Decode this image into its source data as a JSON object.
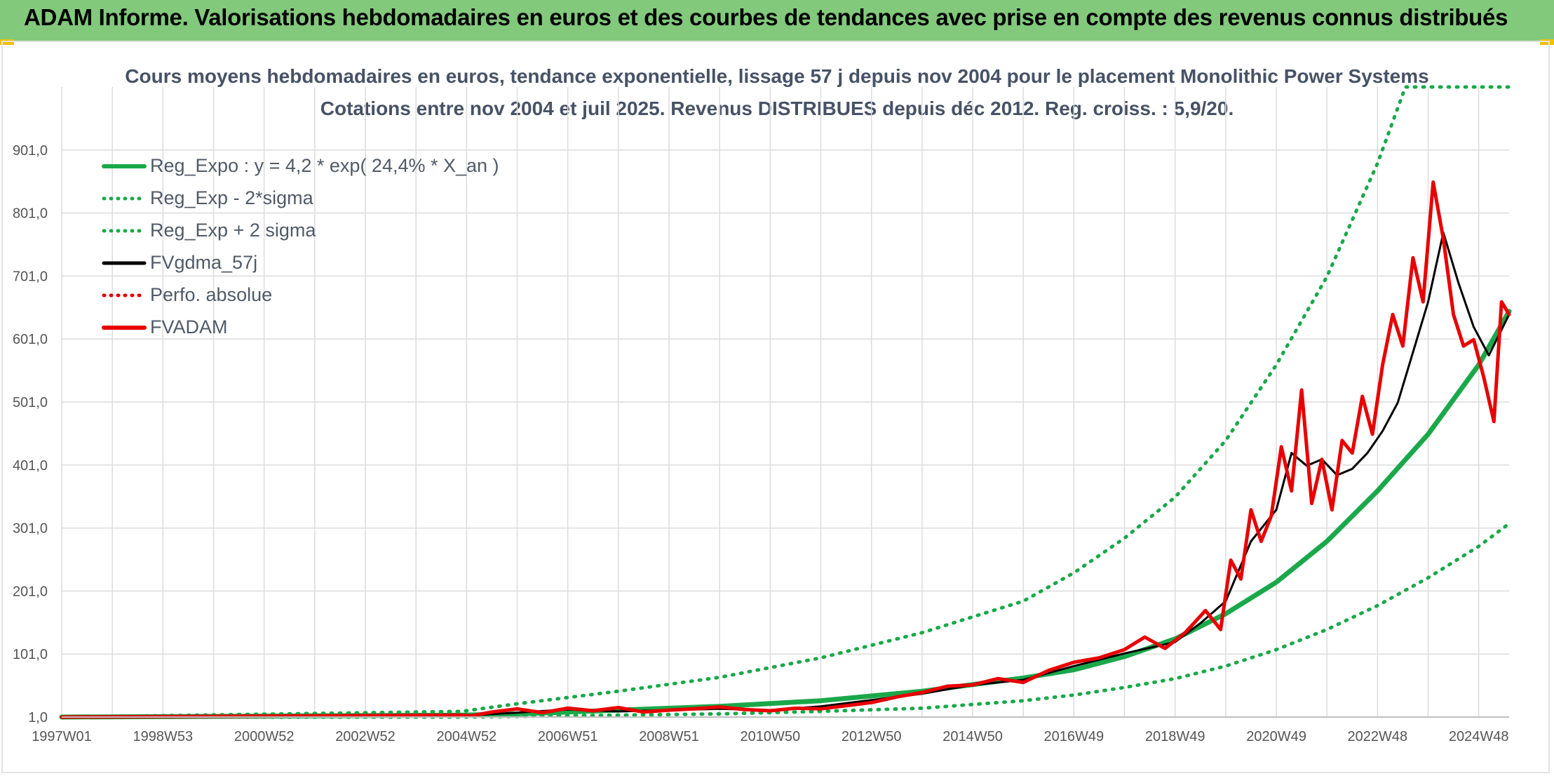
{
  "banner": {
    "title": "ADAM Informe. Valorisations hebdomadaires en euros et des courbes de tendances avec prise en compte des revenus connus distribués"
  },
  "chart_data": {
    "type": "line",
    "title": "Cours moyens hebdomadaires en euros, tendance exponentielle, lissage 57 j depuis nov 2004 pour le placement Monolithic Power Systems",
    "subtitle": "Cotations entre nov 2004 et juil 2025. Revenus DISTRIBUES depuis déc 2012. Reg. croiss. : 5,9/20.",
    "xlabel": "",
    "ylabel": "",
    "x_start_year": 1997,
    "x_end_year": 2025.6,
    "ylim": [
      1,
      1001
    ],
    "yticks": [
      "1,0",
      "101,0",
      "201,0",
      "301,0",
      "401,0",
      "501,0",
      "601,0",
      "701,0",
      "801,0",
      "901,0"
    ],
    "xticks": [
      "1997W01",
      "1998W53",
      "2000W52",
      "2002W52",
      "2004W52",
      "2006W51",
      "2008W51",
      "2010W50",
      "2012W50",
      "2014W50",
      "2016W49",
      "2018W49",
      "2020W49",
      "2022W48",
      "2024W48"
    ],
    "grid": true,
    "legend_position": "top-left",
    "legend": [
      {
        "name": "Reg_Expo : y = 4,2 * exp( 24,4% *  X_an )",
        "color": "#1aa84a",
        "style": "solid"
      },
      {
        "name": "Reg_Exp - 2*sigma",
        "color": "#1aa84a",
        "style": "dotted"
      },
      {
        "name": "Reg_Exp + 2 sigma",
        "color": "#1aa84a",
        "style": "dotted"
      },
      {
        "name": "FVgdma_57j",
        "color": "#000000",
        "style": "solid"
      },
      {
        "name": "Perfo. absolue",
        "color": "#e00000",
        "style": "dotted"
      },
      {
        "name": "FVADAM",
        "color": "#e80000",
        "style": "solid"
      }
    ],
    "series": [
      {
        "name": "Reg_Expo : y = 4,2 * exp( 24,4% *  X_an )",
        "color": "#1aa84a",
        "x": [
          1997,
          2004.9,
          2006,
          2008,
          2010,
          2012,
          2014,
          2016,
          2017,
          2018,
          2019,
          2020,
          2021,
          2022,
          2023,
          2024,
          2025,
          2025.6
        ],
        "y": [
          1,
          4,
          6,
          12,
          18,
          27,
          42,
          63,
          76,
          97,
          125,
          165,
          215,
          280,
          360,
          450,
          560,
          645
        ]
      },
      {
        "name": "Reg_Exp - 2*sigma",
        "color": "#1aa84a",
        "x": [
          1997,
          2004.9,
          2006,
          2008,
          2010,
          2012,
          2014,
          2016,
          2017,
          2018,
          2019,
          2020,
          2021,
          2022,
          2023,
          2024,
          2025,
          2025.6
        ],
        "y": [
          1,
          1,
          2,
          4,
          6,
          10,
          15,
          27,
          36,
          48,
          62,
          82,
          108,
          140,
          178,
          222,
          272,
          308
        ]
      },
      {
        "name": "Reg_Exp + 2 sigma",
        "color": "#1aa84a",
        "x": [
          1997,
          2004.9,
          2006,
          2008,
          2010,
          2012,
          2014,
          2015,
          2016,
          2017,
          2018,
          2019,
          2020,
          2021,
          2022,
          2023,
          2023.55,
          2025.6
        ],
        "y": [
          1,
          10,
          22,
          42,
          64,
          95,
          135,
          160,
          185,
          230,
          285,
          350,
          440,
          560,
          700,
          880,
          1001,
          1001
        ]
      },
      {
        "name": "FVgdma_57j",
        "color": "#000000",
        "x": [
          1997,
          2004.9,
          2006,
          2007,
          2008,
          2009,
          2010,
          2011,
          2012,
          2013,
          2014,
          2015,
          2016,
          2017,
          2018,
          2019,
          2019.5,
          2020,
          2020.5,
          2021,
          2021.3,
          2021.6,
          2021.9,
          2022.2,
          2022.5,
          2022.8,
          2023.1,
          2023.4,
          2023.7,
          2024.0,
          2024.3,
          2024.6,
          2024.9,
          2025.2,
          2025.6
        ],
        "y": [
          1,
          3,
          8,
          13,
          10,
          12,
          14,
          12,
          18,
          28,
          38,
          52,
          60,
          82,
          102,
          120,
          150,
          185,
          280,
          330,
          420,
          400,
          410,
          385,
          395,
          420,
          455,
          500,
          580,
          660,
          770,
          690,
          620,
          575,
          640
        ]
      },
      {
        "name": "FVADAM",
        "color": "#e80000",
        "x": [
          1997,
          2004.85,
          2005.1,
          2005.5,
          2006,
          2006.5,
          2007,
          2007.5,
          2008,
          2008.5,
          2009,
          2009.5,
          2010,
          2010.5,
          2011,
          2011.5,
          2012,
          2012.5,
          2013,
          2013.5,
          2014,
          2014.5,
          2015,
          2015.5,
          2016,
          2016.5,
          2017,
          2017.5,
          2018,
          2018.4,
          2018.8,
          2019.2,
          2019.6,
          2019.9,
          2020.1,
          2020.3,
          2020.5,
          2020.7,
          2020.9,
          2021.1,
          2021.3,
          2021.5,
          2021.7,
          2021.9,
          2022.1,
          2022.3,
          2022.5,
          2022.7,
          2022.9,
          2023.1,
          2023.3,
          2023.5,
          2023.7,
          2023.9,
          2024.1,
          2024.3,
          2024.5,
          2024.7,
          2024.9,
          2025.1,
          2025.3,
          2025.45,
          2025.6
        ],
        "y": [
          1,
          4,
          3,
          9,
          14,
          8,
          15,
          11,
          16,
          9,
          12,
          14,
          17,
          13,
          11,
          15,
          14,
          19,
          24,
          33,
          40,
          50,
          52,
          62,
          56,
          75,
          88,
          95,
          108,
          128,
          110,
          135,
          170,
          140,
          250,
          220,
          330,
          280,
          320,
          430,
          360,
          520,
          340,
          410,
          330,
          440,
          420,
          510,
          450,
          560,
          640,
          590,
          730,
          660,
          850,
          760,
          640,
          590,
          600,
          540,
          470,
          660,
          640
        ]
      }
    ]
  }
}
